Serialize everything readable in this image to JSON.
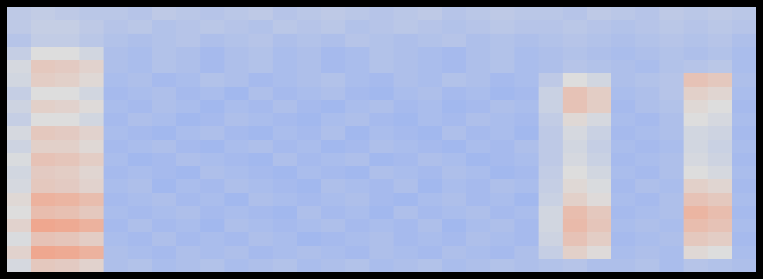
{
  "chart_data": {
    "type": "heatmap",
    "tick_labels": false,
    "zlim": [
      0,
      1
    ],
    "cells": [
      [
        0.42,
        0.43,
        0.42,
        0.41,
        0.41,
        0.4,
        0.42,
        0.41,
        0.4,
        0.41,
        0.42,
        0.4,
        0.41,
        0.42,
        0.41,
        0.4,
        0.41,
        0.42,
        0.4,
        0.41,
        0.42,
        0.41,
        0.41,
        0.4,
        0.42,
        0.41,
        0.4,
        0.42,
        0.41,
        0.42,
        0.41
      ],
      [
        0.42,
        0.44,
        0.44,
        0.42,
        0.4,
        0.41,
        0.39,
        0.4,
        0.41,
        0.4,
        0.39,
        0.41,
        0.4,
        0.41,
        0.39,
        0.4,
        0.41,
        0.4,
        0.39,
        0.4,
        0.41,
        0.4,
        0.4,
        0.41,
        0.4,
        0.39,
        0.4,
        0.41,
        0.4,
        0.41,
        0.4
      ],
      [
        0.4,
        0.43,
        0.43,
        0.41,
        0.39,
        0.38,
        0.39,
        0.4,
        0.38,
        0.39,
        0.4,
        0.38,
        0.39,
        0.38,
        0.4,
        0.39,
        0.38,
        0.39,
        0.4,
        0.38,
        0.39,
        0.38,
        0.39,
        0.4,
        0.39,
        0.38,
        0.39,
        0.4,
        0.39,
        0.4,
        0.38
      ],
      [
        0.44,
        0.5,
        0.5,
        0.47,
        0.38,
        0.37,
        0.39,
        0.38,
        0.36,
        0.38,
        0.39,
        0.37,
        0.38,
        0.36,
        0.37,
        0.39,
        0.38,
        0.37,
        0.36,
        0.38,
        0.39,
        0.37,
        0.38,
        0.39,
        0.38,
        0.37,
        0.38,
        0.39,
        0.38,
        0.39,
        0.37
      ],
      [
        0.48,
        0.58,
        0.57,
        0.54,
        0.38,
        0.37,
        0.39,
        0.38,
        0.36,
        0.38,
        0.39,
        0.37,
        0.38,
        0.36,
        0.37,
        0.39,
        0.38,
        0.37,
        0.36,
        0.38,
        0.39,
        0.37,
        0.38,
        0.4,
        0.39,
        0.38,
        0.37,
        0.39,
        0.4,
        0.41,
        0.37
      ],
      [
        0.47,
        0.56,
        0.55,
        0.52,
        0.37,
        0.38,
        0.36,
        0.37,
        0.39,
        0.38,
        0.36,
        0.37,
        0.38,
        0.39,
        0.37,
        0.36,
        0.38,
        0.37,
        0.39,
        0.38,
        0.36,
        0.37,
        0.42,
        0.5,
        0.47,
        0.38,
        0.39,
        0.4,
        0.6,
        0.58,
        0.38
      ],
      [
        0.44,
        0.5,
        0.5,
        0.47,
        0.36,
        0.37,
        0.38,
        0.36,
        0.37,
        0.35,
        0.38,
        0.36,
        0.37,
        0.38,
        0.36,
        0.35,
        0.37,
        0.38,
        0.36,
        0.37,
        0.35,
        0.36,
        0.45,
        0.6,
        0.56,
        0.37,
        0.38,
        0.4,
        0.55,
        0.53,
        0.37
      ],
      [
        0.46,
        0.55,
        0.54,
        0.51,
        0.37,
        0.36,
        0.38,
        0.37,
        0.35,
        0.37,
        0.36,
        0.38,
        0.36,
        0.35,
        0.37,
        0.38,
        0.36,
        0.37,
        0.35,
        0.36,
        0.38,
        0.37,
        0.45,
        0.6,
        0.56,
        0.36,
        0.38,
        0.39,
        0.52,
        0.5,
        0.36
      ],
      [
        0.44,
        0.5,
        0.5,
        0.47,
        0.36,
        0.38,
        0.37,
        0.35,
        0.36,
        0.38,
        0.37,
        0.36,
        0.35,
        0.37,
        0.38,
        0.36,
        0.35,
        0.37,
        0.36,
        0.38,
        0.37,
        0.36,
        0.43,
        0.52,
        0.48,
        0.37,
        0.36,
        0.38,
        0.5,
        0.48,
        0.37
      ],
      [
        0.48,
        0.58,
        0.57,
        0.54,
        0.37,
        0.36,
        0.35,
        0.37,
        0.38,
        0.36,
        0.35,
        0.37,
        0.36,
        0.38,
        0.35,
        0.37,
        0.36,
        0.35,
        0.38,
        0.36,
        0.37,
        0.35,
        0.42,
        0.48,
        0.45,
        0.36,
        0.37,
        0.38,
        0.47,
        0.46,
        0.36
      ],
      [
        0.46,
        0.55,
        0.55,
        0.52,
        0.36,
        0.37,
        0.38,
        0.36,
        0.35,
        0.37,
        0.38,
        0.36,
        0.37,
        0.35,
        0.36,
        0.38,
        0.37,
        0.36,
        0.35,
        0.37,
        0.36,
        0.38,
        0.42,
        0.47,
        0.44,
        0.37,
        0.36,
        0.37,
        0.47,
        0.45,
        0.37
      ],
      [
        0.49,
        0.6,
        0.59,
        0.56,
        0.37,
        0.35,
        0.36,
        0.38,
        0.37,
        0.36,
        0.35,
        0.38,
        0.36,
        0.37,
        0.38,
        0.35,
        0.36,
        0.38,
        0.37,
        0.35,
        0.36,
        0.37,
        0.42,
        0.48,
        0.45,
        0.36,
        0.37,
        0.38,
        0.48,
        0.46,
        0.36
      ],
      [
        0.47,
        0.57,
        0.56,
        0.53,
        0.36,
        0.37,
        0.36,
        0.35,
        0.38,
        0.37,
        0.36,
        0.35,
        0.37,
        0.36,
        0.35,
        0.38,
        0.37,
        0.36,
        0.38,
        0.37,
        0.35,
        0.36,
        0.43,
        0.5,
        0.47,
        0.37,
        0.36,
        0.38,
        0.5,
        0.48,
        0.37
      ],
      [
        0.48,
        0.58,
        0.57,
        0.54,
        0.37,
        0.38,
        0.35,
        0.37,
        0.36,
        0.38,
        0.37,
        0.36,
        0.35,
        0.38,
        0.37,
        0.36,
        0.38,
        0.35,
        0.37,
        0.36,
        0.38,
        0.37,
        0.44,
        0.52,
        0.49,
        0.36,
        0.38,
        0.37,
        0.55,
        0.53,
        0.36
      ],
      [
        0.52,
        0.66,
        0.65,
        0.62,
        0.36,
        0.37,
        0.38,
        0.36,
        0.37,
        0.35,
        0.38,
        0.37,
        0.36,
        0.37,
        0.38,
        0.36,
        0.35,
        0.37,
        0.38,
        0.36,
        0.37,
        0.35,
        0.45,
        0.55,
        0.51,
        0.37,
        0.36,
        0.38,
        0.6,
        0.58,
        0.37
      ],
      [
        0.5,
        0.62,
        0.61,
        0.58,
        0.37,
        0.36,
        0.37,
        0.38,
        0.36,
        0.37,
        0.36,
        0.35,
        0.38,
        0.36,
        0.37,
        0.35,
        0.38,
        0.36,
        0.37,
        0.38,
        0.36,
        0.37,
        0.47,
        0.62,
        0.58,
        0.36,
        0.37,
        0.38,
        0.65,
        0.62,
        0.36
      ],
      [
        0.54,
        0.7,
        0.69,
        0.66,
        0.36,
        0.38,
        0.36,
        0.37,
        0.35,
        0.38,
        0.37,
        0.36,
        0.37,
        0.38,
        0.36,
        0.37,
        0.36,
        0.38,
        0.35,
        0.37,
        0.38,
        0.36,
        0.47,
        0.63,
        0.59,
        0.37,
        0.38,
        0.37,
        0.62,
        0.6,
        0.37
      ],
      [
        0.49,
        0.6,
        0.59,
        0.56,
        0.37,
        0.36,
        0.38,
        0.36,
        0.37,
        0.36,
        0.38,
        0.37,
        0.35,
        0.36,
        0.37,
        0.38,
        0.36,
        0.37,
        0.36,
        0.38,
        0.37,
        0.36,
        0.46,
        0.6,
        0.56,
        0.36,
        0.37,
        0.38,
        0.58,
        0.56,
        0.36
      ],
      [
        0.54,
        0.7,
        0.69,
        0.66,
        0.38,
        0.37,
        0.36,
        0.38,
        0.37,
        0.38,
        0.36,
        0.37,
        0.38,
        0.37,
        0.36,
        0.38,
        0.37,
        0.36,
        0.38,
        0.37,
        0.36,
        0.38,
        0.44,
        0.55,
        0.51,
        0.37,
        0.38,
        0.37,
        0.52,
        0.5,
        0.37
      ],
      [
        0.48,
        0.58,
        0.57,
        0.54,
        0.38,
        0.39,
        0.37,
        0.38,
        0.39,
        0.37,
        0.38,
        0.39,
        0.37,
        0.38,
        0.39,
        0.37,
        0.38,
        0.39,
        0.37,
        0.38,
        0.39,
        0.38,
        0.39,
        0.4,
        0.38,
        0.38,
        0.39,
        0.37,
        0.4,
        0.39,
        0.38
      ]
    ]
  }
}
